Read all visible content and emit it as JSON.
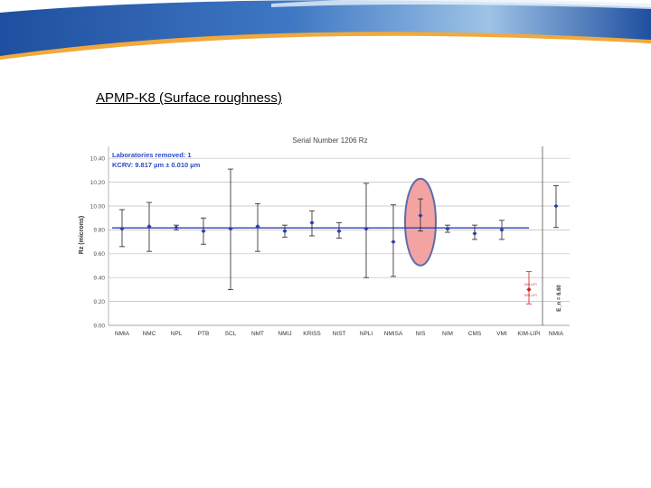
{
  "slide": {
    "title": "APMP-K8 (Surface roughness)"
  },
  "colors": {
    "banner_dark": "#1f4fa0",
    "banner_light": "#9ec3e6",
    "banner_accent": "#f2a93b",
    "kcrv_line": "#2e3fa8",
    "point": "#2e3fa8",
    "removed_point": "#cc2222",
    "highlight_fill": "#f4a3a3",
    "highlight_stroke": "#5a6ea8"
  },
  "chart_data": {
    "type": "scatter",
    "title": "Serial Number 1206 Rz",
    "ylabel": "Rz (microns)",
    "ylim": [
      9.0,
      10.5
    ],
    "yticks": [
      "10.40",
      "10.20",
      "10.00",
      "9.80",
      "9.60",
      "9.40",
      "9.20",
      "9.00"
    ],
    "ytick_values": [
      10.4,
      10.2,
      10.0,
      9.8,
      9.6,
      9.4,
      9.2,
      9.0
    ],
    "grid": true,
    "annotations": {
      "labs_removed": "Laboratories removed: 1",
      "kcrv": "KCRV: 9.817 µm ± 0.010 µm",
      "side_label": "E_n = 6.60"
    },
    "kcrv_value": 9.817,
    "categories": [
      "NMIA",
      "NMC",
      "NPL",
      "PTB",
      "SCL",
      "NMT",
      "NMIJ",
      "KRISS",
      "NIST",
      "NPLI",
      "NMISA",
      "NIS",
      "NIM",
      "CMS",
      "VMI",
      "KIM-LIPI",
      "NMIA"
    ],
    "values": [
      9.81,
      9.83,
      9.82,
      9.79,
      9.81,
      9.83,
      9.79,
      9.86,
      9.79,
      9.81,
      9.7,
      9.92,
      9.81,
      9.77,
      9.8,
      9.3,
      10.0
    ],
    "error_low": [
      9.66,
      9.62,
      9.8,
      9.68,
      9.3,
      9.62,
      9.74,
      9.75,
      9.73,
      9.4,
      9.41,
      9.79,
      9.78,
      9.72,
      9.72,
      9.18,
      9.82
    ],
    "error_high": [
      9.97,
      10.03,
      9.84,
      9.9,
      10.31,
      10.02,
      9.84,
      9.96,
      9.86,
      10.19,
      10.01,
      10.06,
      9.84,
      9.84,
      9.88,
      9.45,
      10.17
    ],
    "removed_index": 15,
    "highlighted_index": 11
  }
}
